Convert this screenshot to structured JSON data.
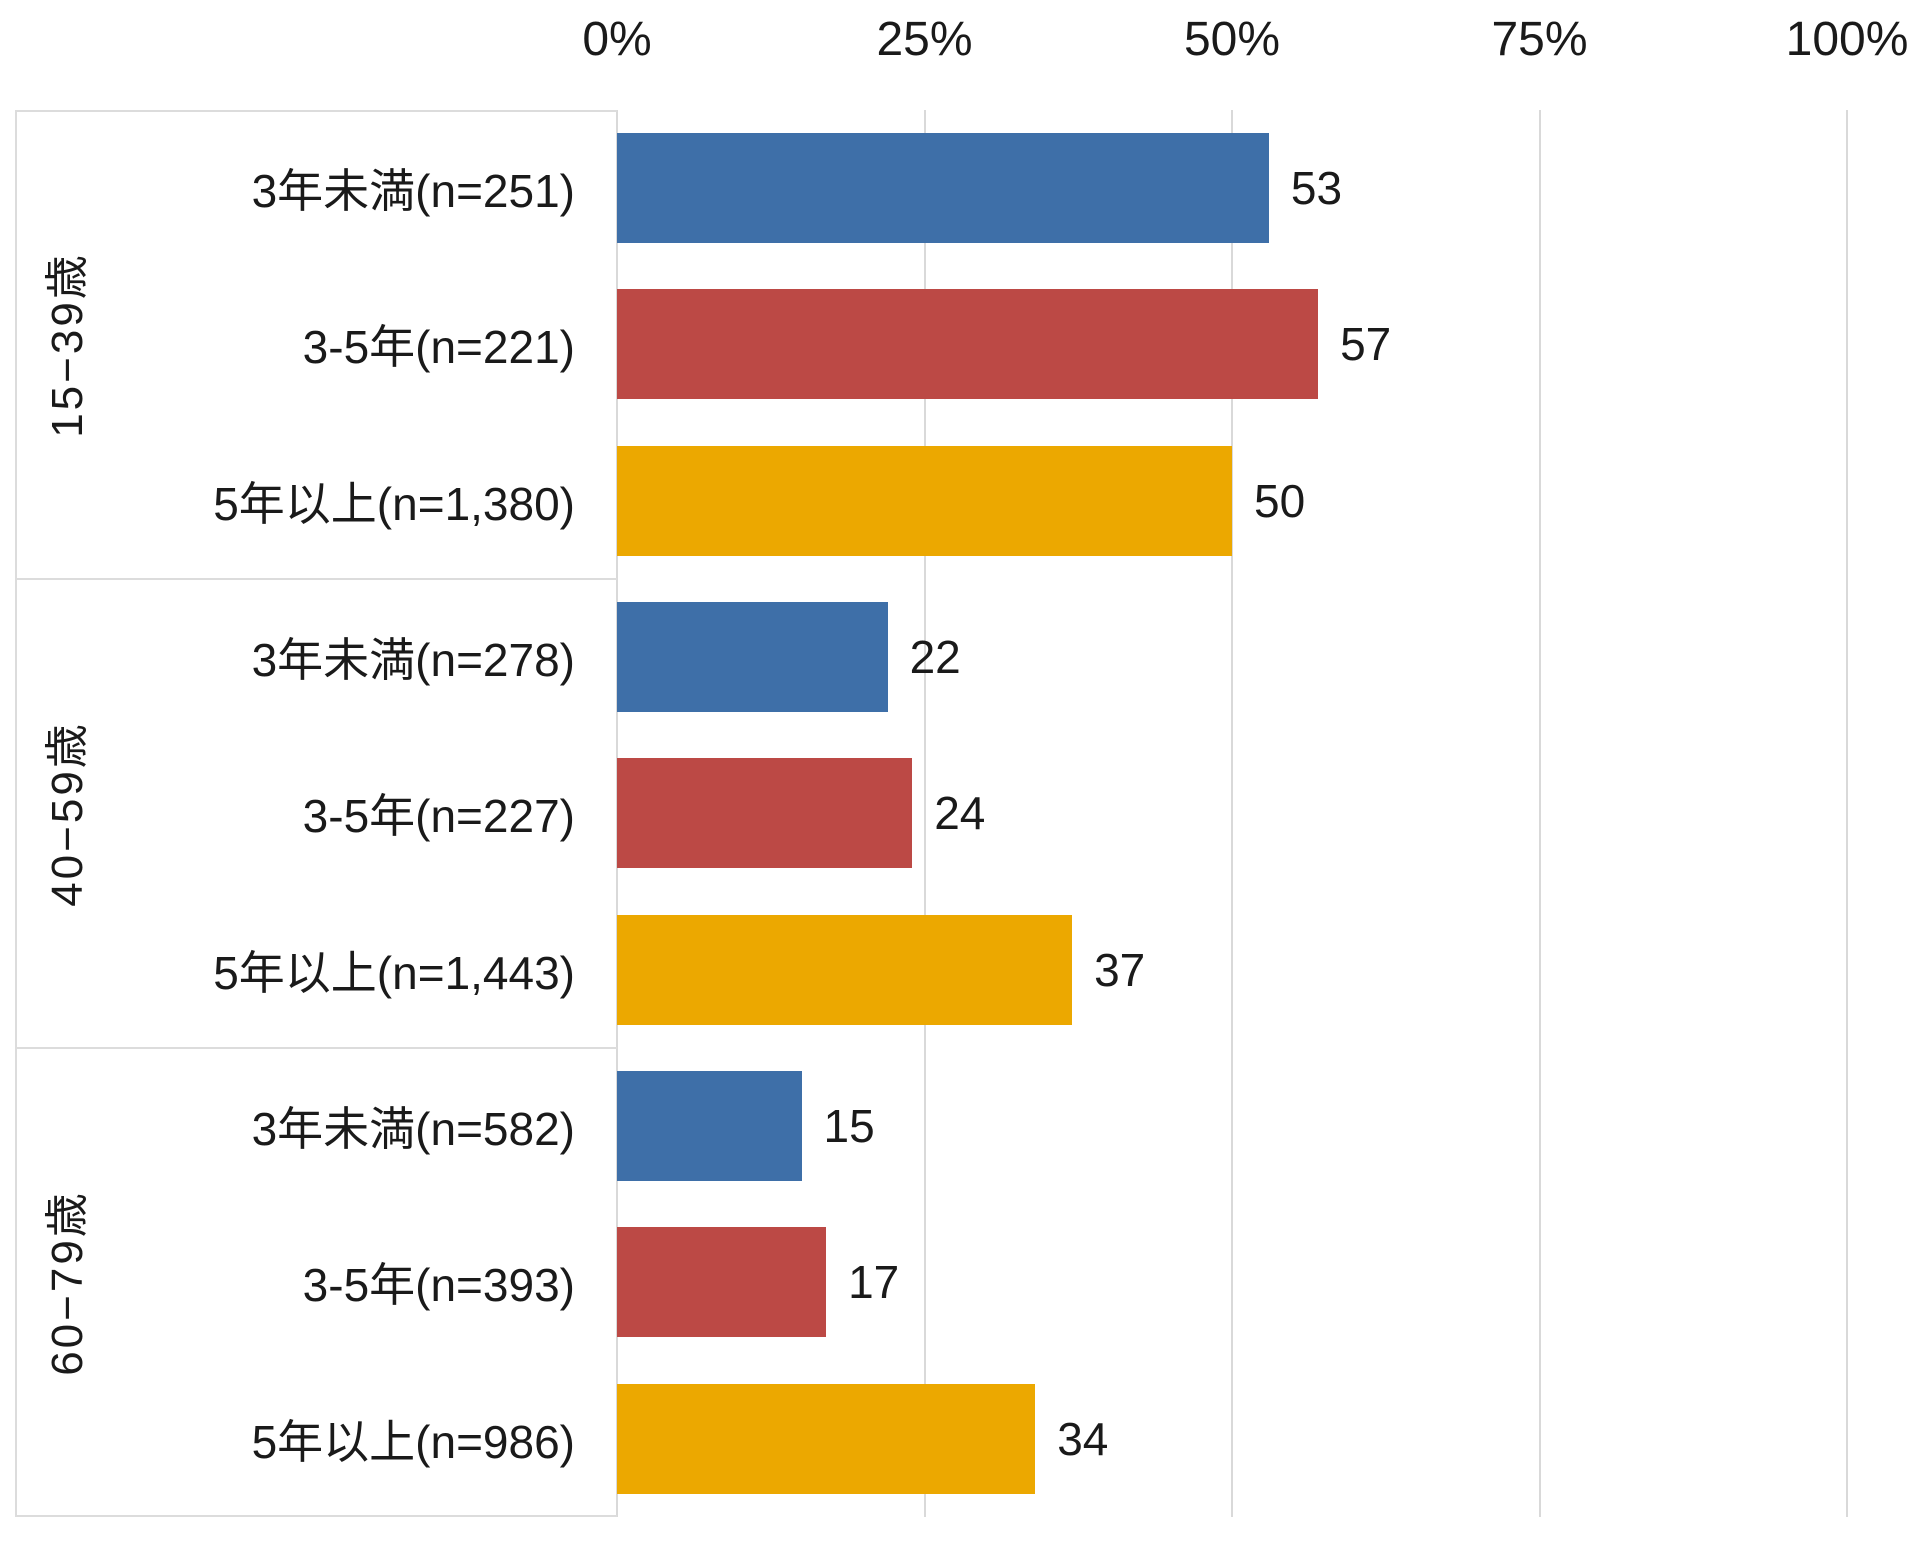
{
  "chart_data": {
    "type": "bar",
    "orientation": "horizontal",
    "title": "",
    "x_axis": {
      "ticks": [
        "0%",
        "25%",
        "50%",
        "75%",
        "100%"
      ],
      "min": 0,
      "max": 100,
      "grid": true
    },
    "legend_position": "none",
    "value_labels": "outside-end",
    "series_colors": {
      "under3y": "#3E6FA8",
      "3to5y": "#BC4945",
      "over5y": "#ECA800"
    },
    "groups": [
      {
        "label": "15−39歳",
        "rows": [
          {
            "label": "3年未満(n=251)",
            "value": 53,
            "value_label": "53",
            "color": "#3E6FA8"
          },
          {
            "label": "3-5年(n=221)",
            "value": 57,
            "value_label": "57",
            "color": "#BC4945"
          },
          {
            "label": "5年以上(n=1,380)",
            "value": 50,
            "value_label": "50",
            "color": "#ECA800"
          }
        ]
      },
      {
        "label": "40−59歳",
        "rows": [
          {
            "label": "3年未満(n=278)",
            "value": 22,
            "value_label": "22",
            "color": "#3E6FA8"
          },
          {
            "label": "3-5年(n=227)",
            "value": 24,
            "value_label": "24",
            "color": "#BC4945"
          },
          {
            "label": "5年以上(n=1,443)",
            "value": 37,
            "value_label": "37",
            "color": "#ECA800"
          }
        ]
      },
      {
        "label": "60−79歳",
        "rows": [
          {
            "label": "3年未満(n=582)",
            "value": 15,
            "value_label": "15",
            "color": "#3E6FA8"
          },
          {
            "label": "3-5年(n=393)",
            "value": 17,
            "value_label": "17",
            "color": "#BC4945"
          },
          {
            "label": "5年以上(n=986)",
            "value": 34,
            "value_label": "34",
            "color": "#ECA800"
          }
        ]
      }
    ]
  },
  "colors": {
    "grid": "#D9D9D9",
    "label_box_border": "#DCDCDC",
    "text": "#1A1A1A",
    "background": "#FFFFFF"
  }
}
